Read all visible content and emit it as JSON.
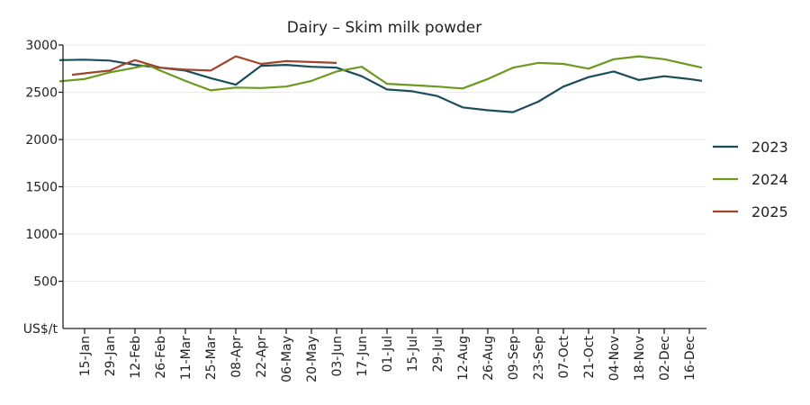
{
  "chart_data": {
    "type": "line",
    "title": "Dairy – Skim milk powder",
    "ylabel": "US$/t",
    "ylim": [
      0,
      3000
    ],
    "yticks": [
      500,
      1000,
      1500,
      2000,
      2500,
      3000
    ],
    "grid": true,
    "legend_position": "right",
    "x": [
      "01-Jan",
      "08-Jan",
      "15-Jan",
      "22-Jan",
      "29-Jan",
      "05-Feb",
      "12-Feb",
      "19-Feb",
      "26-Feb",
      "04-Mar",
      "11-Mar",
      "18-Mar",
      "25-Mar",
      "01-Apr",
      "08-Apr",
      "15-Apr",
      "22-Apr",
      "29-Apr",
      "06-May",
      "13-May",
      "20-May",
      "27-May",
      "03-Jun",
      "10-Jun",
      "17-Jun",
      "24-Jun",
      "01-Jul",
      "08-Jul",
      "15-Jul",
      "22-Jul",
      "29-Jul",
      "05-Aug",
      "12-Aug",
      "19-Aug",
      "26-Aug",
      "02-Sep",
      "09-Sep",
      "16-Sep",
      "23-Sep",
      "30-Sep",
      "07-Oct",
      "14-Oct",
      "21-Oct",
      "28-Oct",
      "04-Nov",
      "11-Nov",
      "18-Nov",
      "25-Nov",
      "02-Dec",
      "09-Dec",
      "16-Dec",
      "23-Dec"
    ],
    "tick_labels": [
      "15-Jan",
      "29-Jan",
      "12-Feb",
      "26-Feb",
      "11-Mar",
      "25-Mar",
      "08-Apr",
      "22-Apr",
      "06-May",
      "20-May",
      "03-Jun",
      "17-Jun",
      "01-Jul",
      "15-Jul",
      "29-Jul",
      "12-Aug",
      "26-Aug",
      "09-Sep",
      "23-Sep",
      "07-Oct",
      "21-Oct",
      "04-Nov",
      "18-Nov",
      "02-Dec",
      "16-Dec"
    ],
    "series": [
      {
        "name": "2023",
        "color": "#1a4d5c",
        "x": [
          "01-Jan",
          "15-Jan",
          "29-Jan",
          "12-Feb",
          "26-Feb",
          "11-Mar",
          "25-Mar",
          "08-Apr",
          "22-Apr",
          "06-May",
          "20-May",
          "03-Jun",
          "17-Jun",
          "01-Jul",
          "15-Jul",
          "29-Jul",
          "12-Aug",
          "26-Aug",
          "09-Sep",
          "23-Sep",
          "07-Oct",
          "21-Oct",
          "04-Nov",
          "18-Nov",
          "02-Dec",
          "16-Dec",
          "23-Dec"
        ],
        "values": [
          2840,
          2845,
          2835,
          2790,
          2760,
          2730,
          2650,
          2580,
          2780,
          2790,
          2770,
          2760,
          2670,
          2530,
          2510,
          2460,
          2340,
          2310,
          2290,
          2400,
          2560,
          2660,
          2720,
          2630,
          2670,
          2640,
          2620
        ]
      },
      {
        "name": "2024",
        "color": "#6b9a1f",
        "x": [
          "01-Jan",
          "15-Jan",
          "29-Jan",
          "12-Feb",
          "19-Feb",
          "26-Feb",
          "11-Mar",
          "25-Mar",
          "08-Apr",
          "22-Apr",
          "06-May",
          "20-May",
          "03-Jun",
          "17-Jun",
          "01-Jul",
          "15-Jul",
          "29-Jul",
          "05-Aug",
          "12-Aug",
          "26-Aug",
          "09-Sep",
          "23-Sep",
          "07-Oct",
          "21-Oct",
          "04-Nov",
          "18-Nov",
          "02-Dec",
          "16-Dec",
          "23-Dec"
        ],
        "values": [
          2615,
          2640,
          2710,
          2760,
          2790,
          2730,
          2620,
          2520,
          2550,
          2545,
          2560,
          2620,
          2720,
          2770,
          2590,
          2575,
          2560,
          2550,
          2540,
          2640,
          2760,
          2810,
          2800,
          2750,
          2850,
          2880,
          2850,
          2790,
          2760
        ]
      },
      {
        "name": "2025",
        "color": "#a0442c",
        "x": [
          "08-Jan",
          "15-Jan",
          "29-Jan",
          "05-Feb",
          "12-Feb",
          "26-Feb",
          "11-Mar",
          "25-Mar",
          "08-Apr",
          "22-Apr",
          "06-May",
          "20-May",
          "03-Jun"
        ],
        "values": [
          2685,
          2700,
          2730,
          2790,
          2840,
          2760,
          2740,
          2730,
          2880,
          2800,
          2830,
          2820,
          2810
        ]
      }
    ]
  }
}
